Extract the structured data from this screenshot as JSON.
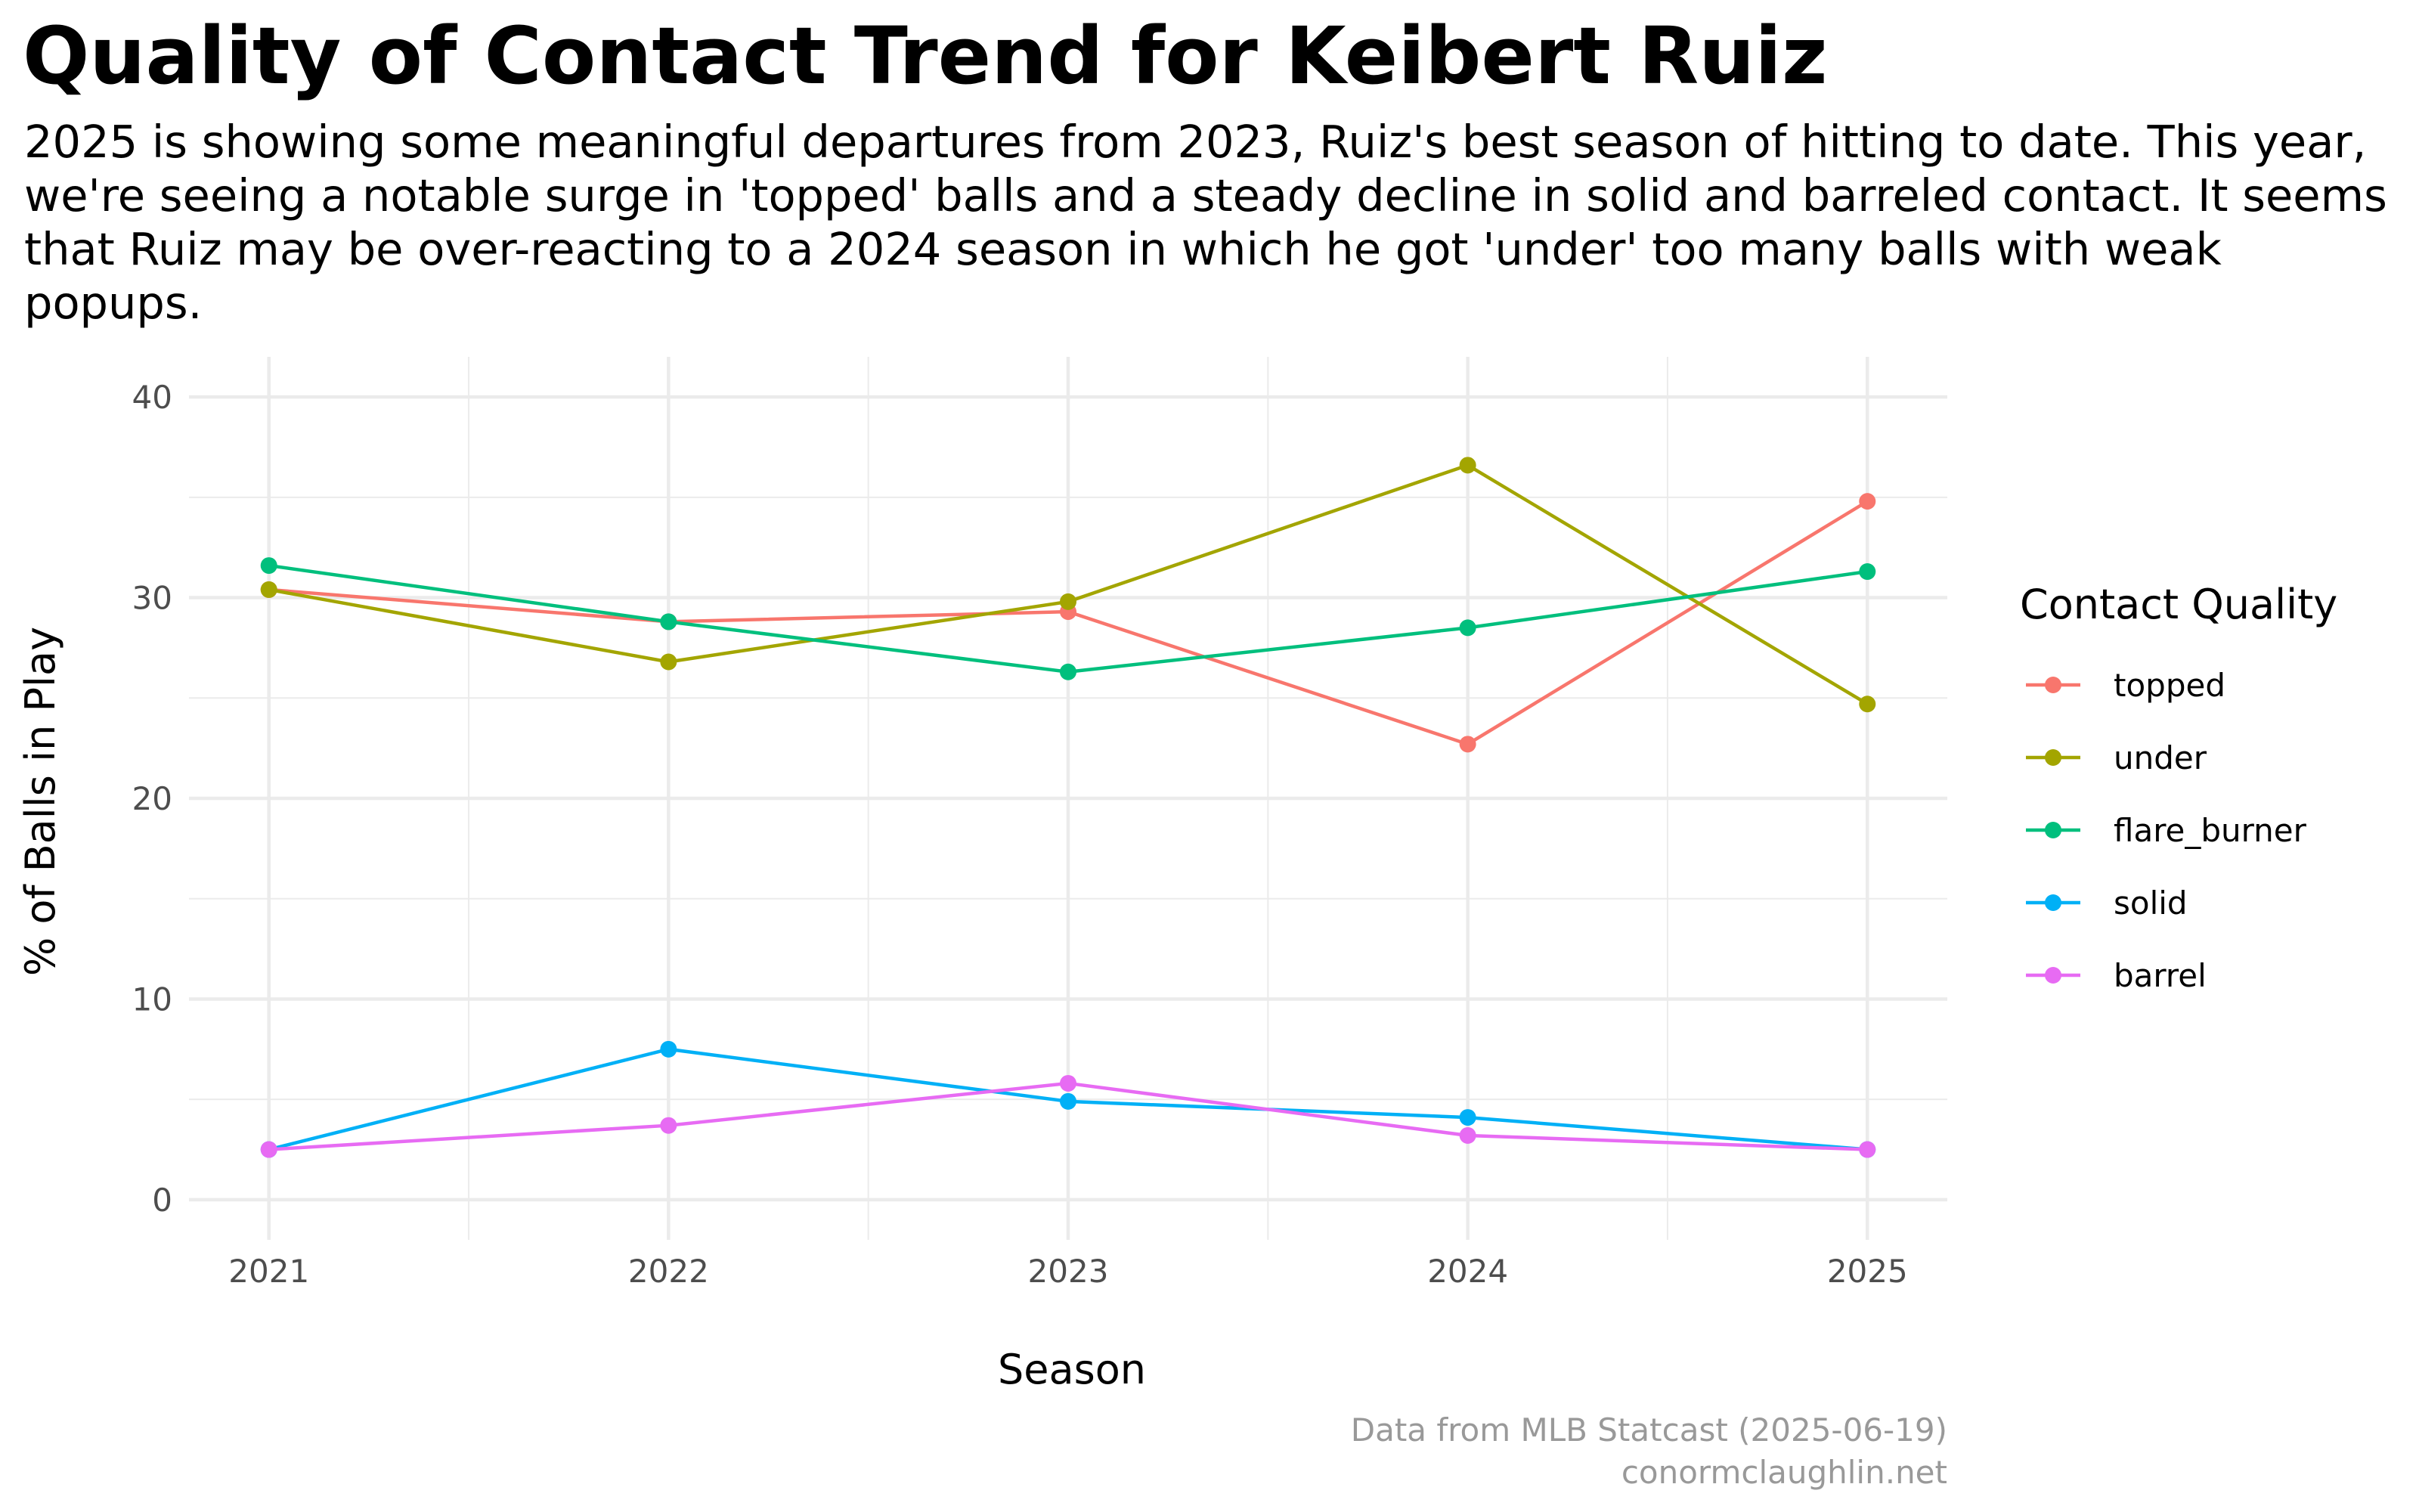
{
  "title": "Quality of Contact Trend for Keibert Ruiz",
  "subtitle": "2025 is showing some meaningful departures from 2023, Ruiz's best season of hitting to date. This year, we're seeing a notable surge in 'topped' balls and a steady decline in solid and barreled contact. It seems that Ruiz may be over-reacting to a 2024 season in which he got 'under' too many balls with weak popups.",
  "caption_line1": "Data from MLB Statcast (2025-06-19)",
  "caption_line2": "conormclaughlin.net",
  "chart_data": {
    "type": "line",
    "xlabel": "Season",
    "ylabel": "% of Balls in Play",
    "x": [
      2021,
      2022,
      2023,
      2024,
      2025
    ],
    "x_tick_labels": [
      "2021",
      "2022",
      "2023",
      "2024",
      "2025"
    ],
    "y_ticks": [
      0,
      10,
      20,
      30,
      40
    ],
    "ylim": [
      -2,
      42
    ],
    "grid": true,
    "legend_title": "Contact Quality",
    "legend_position": "right",
    "series": [
      {
        "name": "topped",
        "color": "#F8766D",
        "values": [
          30.4,
          28.8,
          29.3,
          22.7,
          34.8
        ]
      },
      {
        "name": "under",
        "color": "#A3A500",
        "values": [
          30.4,
          26.8,
          29.8,
          36.6,
          24.7
        ]
      },
      {
        "name": "flare_burner",
        "color": "#00BF7D",
        "values": [
          31.6,
          28.8,
          26.3,
          28.5,
          31.3
        ]
      },
      {
        "name": "solid",
        "color": "#00B0F6",
        "values": [
          2.5,
          7.5,
          4.9,
          4.1,
          2.5
        ]
      },
      {
        "name": "barrel",
        "color": "#E76BF3",
        "values": [
          2.5,
          3.7,
          5.8,
          3.2,
          2.5
        ]
      }
    ]
  }
}
